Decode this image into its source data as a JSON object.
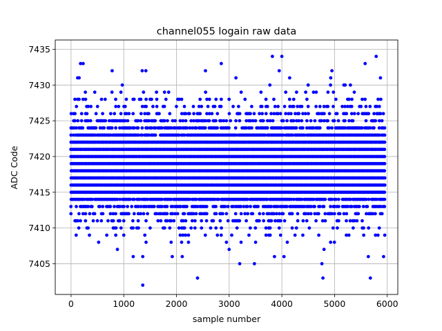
{
  "chart_data": {
    "type": "scatter",
    "title": "channel055 logain raw data",
    "xlabel": "sample number",
    "ylabel": "ADC Code",
    "xlim": [
      -300,
      6200
    ],
    "ylim": [
      7400.7,
      7436.3
    ],
    "xticks": [
      0,
      1000,
      2000,
      3000,
      4000,
      5000,
      6000
    ],
    "yticks": [
      7405,
      7410,
      7415,
      7420,
      7425,
      7430,
      7435
    ],
    "grid": true,
    "marker_color": "#0000ff",
    "series": [
      {
        "x_start": 0,
        "x_end": 5950,
        "x_step": 25,
        "y_level_weights": {
          "7402": 1,
          "7403": 1,
          "7404": 1,
          "7405": 2,
          "7406": 3,
          "7407": 6,
          "7408": 12,
          "7409": 25,
          "7410": 50,
          "7411": 90,
          "7412": 160,
          "7413": 240,
          "7414": 320,
          "7415": 400,
          "7416": 450,
          "7417": 480,
          "7418": 490,
          "7419": 480,
          "7420": 460,
          "7421": 420,
          "7422": 380,
          "7423": 320,
          "7424": 260,
          "7425": 190,
          "7426": 130,
          "7427": 85,
          "7428": 45,
          "7429": 25,
          "7430": 12,
          "7431": 6,
          "7432": 3,
          "7433": 2,
          "7434": 1
        },
        "points_per_column": 20,
        "outliers": [
          {
            "x": 1360,
            "y": 7402
          },
          {
            "x": 2400,
            "y": 7403
          },
          {
            "x": 4780,
            "y": 7403
          },
          {
            "x": 5680,
            "y": 7403
          },
          {
            "x": 3200,
            "y": 7405
          },
          {
            "x": 3480,
            "y": 7405
          },
          {
            "x": 4760,
            "y": 7405
          },
          {
            "x": 1180,
            "y": 7406
          },
          {
            "x": 1360,
            "y": 7406
          },
          {
            "x": 1920,
            "y": 7406
          },
          {
            "x": 2110,
            "y": 7406
          },
          {
            "x": 3860,
            "y": 7406
          },
          {
            "x": 4040,
            "y": 7406
          },
          {
            "x": 5640,
            "y": 7406
          },
          {
            "x": 5930,
            "y": 7406
          },
          {
            "x": 880,
            "y": 7407
          },
          {
            "x": 3000,
            "y": 7407
          },
          {
            "x": 4800,
            "y": 7407
          },
          {
            "x": 180,
            "y": 7433
          },
          {
            "x": 230,
            "y": 7433
          },
          {
            "x": 2850,
            "y": 7433
          },
          {
            "x": 5580,
            "y": 7433
          },
          {
            "x": 3820,
            "y": 7434
          },
          {
            "x": 4000,
            "y": 7434
          },
          {
            "x": 5790,
            "y": 7434
          },
          {
            "x": 780,
            "y": 7432
          },
          {
            "x": 1350,
            "y": 7432
          },
          {
            "x": 1420,
            "y": 7432
          },
          {
            "x": 2550,
            "y": 7432
          },
          {
            "x": 3950,
            "y": 7432
          },
          {
            "x": 4950,
            "y": 7432
          }
        ]
      }
    ]
  }
}
